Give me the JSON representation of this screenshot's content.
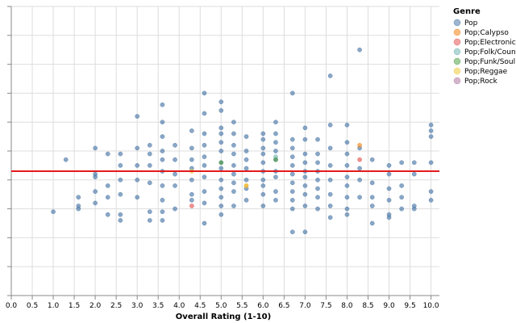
{
  "chart_data": {
    "type": "scatter",
    "title": "",
    "xlabel": "Overall Rating (1-10)",
    "ylabel": "",
    "xlim": [
      0,
      10.2
    ],
    "ylim": [
      0,
      1
    ],
    "x_ticks": [
      0,
      0.5,
      1,
      1.5,
      2,
      2.5,
      3,
      3.5,
      4,
      4.5,
      5,
      5.5,
      6,
      6.5,
      7,
      7.5,
      8,
      8.5,
      9,
      9.5,
      10
    ],
    "x_tick_labels": [
      "0.0",
      "0.5",
      "1.0",
      "1.5",
      "2.0",
      "2.5",
      "3.0",
      "3.5",
      "4.0",
      "4.5",
      "5.0",
      "5.5",
      "6.0",
      "6.5",
      "7.0",
      "7.5",
      "8.0",
      "8.5",
      "9.0",
      "9.5",
      "10.0"
    ],
    "y_ticks": [
      0,
      0.1,
      0.2,
      0.3,
      0.4,
      0.5,
      0.6,
      0.7,
      0.8,
      0.9,
      1.0
    ],
    "reference_line": {
      "y": 0.43,
      "color": "#e41a1c"
    },
    "legend": {
      "title": "Genre",
      "position": "right",
      "entries": [
        {
          "label": "Pop",
          "color": "#4c78a8"
        },
        {
          "label": "Pop;Calypso",
          "color": "#f58518"
        },
        {
          "label": "Pop;Electronic/",
          "color": "#e45756"
        },
        {
          "label": "Pop;Folk/Count",
          "color": "#72b7b2"
        },
        {
          "label": "Pop;Funk/Soul",
          "color": "#54a24b"
        },
        {
          "label": "Pop;Reggae",
          "color": "#eeca3b"
        },
        {
          "label": "Pop;Rock",
          "color": "#b279a2"
        }
      ]
    },
    "series": [
      {
        "name": "Pop",
        "color": "#4c78a8",
        "points": [
          [
            1.0,
            0.29
          ],
          [
            1.3,
            0.47
          ],
          [
            1.6,
            0.34
          ],
          [
            1.6,
            0.31
          ],
          [
            1.6,
            0.3
          ],
          [
            2.0,
            0.51
          ],
          [
            2.0,
            0.42
          ],
          [
            2.0,
            0.41
          ],
          [
            2.0,
            0.32
          ],
          [
            2.0,
            0.36
          ],
          [
            2.3,
            0.49
          ],
          [
            2.3,
            0.38
          ],
          [
            2.3,
            0.34
          ],
          [
            2.3,
            0.28
          ],
          [
            2.6,
            0.49
          ],
          [
            2.6,
            0.45
          ],
          [
            2.6,
            0.4
          ],
          [
            2.6,
            0.35
          ],
          [
            2.6,
            0.28
          ],
          [
            2.6,
            0.26
          ],
          [
            3.0,
            0.62
          ],
          [
            3.0,
            0.51
          ],
          [
            3.0,
            0.45
          ],
          [
            3.0,
            0.4
          ],
          [
            3.0,
            0.34
          ],
          [
            3.3,
            0.52
          ],
          [
            3.3,
            0.49
          ],
          [
            3.3,
            0.45
          ],
          [
            3.3,
            0.39
          ],
          [
            3.3,
            0.29
          ],
          [
            3.3,
            0.26
          ],
          [
            3.6,
            0.66
          ],
          [
            3.6,
            0.6
          ],
          [
            3.6,
            0.55
          ],
          [
            3.6,
            0.5
          ],
          [
            3.6,
            0.47
          ],
          [
            3.6,
            0.43
          ],
          [
            3.6,
            0.38
          ],
          [
            3.6,
            0.33
          ],
          [
            3.6,
            0.29
          ],
          [
            3.6,
            0.26
          ],
          [
            3.9,
            0.52
          ],
          [
            3.9,
            0.47
          ],
          [
            3.9,
            0.42
          ],
          [
            3.9,
            0.38
          ],
          [
            3.9,
            0.3
          ],
          [
            4.3,
            0.57
          ],
          [
            4.3,
            0.51
          ],
          [
            4.3,
            0.47
          ],
          [
            4.3,
            0.44
          ],
          [
            4.3,
            0.4
          ],
          [
            4.3,
            0.35
          ],
          [
            4.3,
            0.33
          ],
          [
            4.6,
            0.7
          ],
          [
            4.6,
            0.63
          ],
          [
            4.6,
            0.56
          ],
          [
            4.6,
            0.52
          ],
          [
            4.6,
            0.48
          ],
          [
            4.6,
            0.45
          ],
          [
            4.6,
            0.41
          ],
          [
            4.6,
            0.36
          ],
          [
            4.6,
            0.32
          ],
          [
            4.6,
            0.25
          ],
          [
            5.0,
            0.67
          ],
          [
            5.0,
            0.64
          ],
          [
            5.0,
            0.58
          ],
          [
            5.0,
            0.56
          ],
          [
            5.0,
            0.53
          ],
          [
            5.0,
            0.5
          ],
          [
            5.0,
            0.46
          ],
          [
            5.0,
            0.44
          ],
          [
            5.0,
            0.4
          ],
          [
            5.0,
            0.37
          ],
          [
            5.0,
            0.34
          ],
          [
            5.0,
            0.31
          ],
          [
            5.0,
            0.28
          ],
          [
            5.3,
            0.6
          ],
          [
            5.3,
            0.56
          ],
          [
            5.3,
            0.52
          ],
          [
            5.3,
            0.49
          ],
          [
            5.3,
            0.45
          ],
          [
            5.3,
            0.42
          ],
          [
            5.3,
            0.39
          ],
          [
            5.3,
            0.36
          ],
          [
            5.3,
            0.31
          ],
          [
            5.6,
            0.55
          ],
          [
            5.6,
            0.5
          ],
          [
            5.6,
            0.47
          ],
          [
            5.6,
            0.44
          ],
          [
            5.6,
            0.4
          ],
          [
            5.6,
            0.37
          ],
          [
            5.6,
            0.33
          ],
          [
            6.0,
            0.56
          ],
          [
            6.0,
            0.54
          ],
          [
            6.0,
            0.51
          ],
          [
            6.0,
            0.49
          ],
          [
            6.0,
            0.46
          ],
          [
            6.0,
            0.43
          ],
          [
            6.0,
            0.4
          ],
          [
            6.0,
            0.38
          ],
          [
            6.0,
            0.35
          ],
          [
            6.0,
            0.31
          ],
          [
            6.3,
            0.6
          ],
          [
            6.3,
            0.56
          ],
          [
            6.3,
            0.53
          ],
          [
            6.3,
            0.5
          ],
          [
            6.3,
            0.47
          ],
          [
            6.3,
            0.43
          ],
          [
            6.3,
            0.41
          ],
          [
            6.3,
            0.36
          ],
          [
            6.3,
            0.33
          ],
          [
            6.7,
            0.7
          ],
          [
            6.7,
            0.54
          ],
          [
            6.7,
            0.51
          ],
          [
            6.7,
            0.48
          ],
          [
            6.7,
            0.45
          ],
          [
            6.7,
            0.42
          ],
          [
            6.7,
            0.39
          ],
          [
            6.7,
            0.36
          ],
          [
            6.7,
            0.33
          ],
          [
            6.7,
            0.3
          ],
          [
            6.7,
            0.22
          ],
          [
            7.0,
            0.58
          ],
          [
            7.0,
            0.54
          ],
          [
            7.0,
            0.49
          ],
          [
            7.0,
            0.46
          ],
          [
            7.0,
            0.43
          ],
          [
            7.0,
            0.41
          ],
          [
            7.0,
            0.38
          ],
          [
            7.0,
            0.35
          ],
          [
            7.0,
            0.31
          ],
          [
            7.0,
            0.22
          ],
          [
            7.3,
            0.54
          ],
          [
            7.3,
            0.49
          ],
          [
            7.3,
            0.46
          ],
          [
            7.3,
            0.43
          ],
          [
            7.3,
            0.4
          ],
          [
            7.3,
            0.37
          ],
          [
            7.3,
            0.34
          ],
          [
            7.3,
            0.3
          ],
          [
            7.6,
            0.76
          ],
          [
            7.6,
            0.59
          ],
          [
            7.6,
            0.51
          ],
          [
            7.6,
            0.45
          ],
          [
            7.6,
            0.4
          ],
          [
            7.6,
            0.35
          ],
          [
            7.6,
            0.31
          ],
          [
            7.6,
            0.27
          ],
          [
            8.0,
            0.59
          ],
          [
            8.0,
            0.53
          ],
          [
            8.0,
            0.49
          ],
          [
            8.0,
            0.45
          ],
          [
            8.0,
            0.41
          ],
          [
            8.0,
            0.38
          ],
          [
            8.0,
            0.34
          ],
          [
            8.0,
            0.3
          ],
          [
            8.0,
            0.28
          ],
          [
            8.3,
            0.85
          ],
          [
            8.3,
            0.51
          ],
          [
            8.3,
            0.44
          ],
          [
            8.3,
            0.4
          ],
          [
            8.3,
            0.34
          ],
          [
            8.6,
            0.47
          ],
          [
            8.6,
            0.39
          ],
          [
            8.6,
            0.34
          ],
          [
            8.6,
            0.31
          ],
          [
            8.6,
            0.25
          ],
          [
            9.0,
            0.45
          ],
          [
            9.0,
            0.42
          ],
          [
            9.0,
            0.37
          ],
          [
            9.0,
            0.33
          ],
          [
            9.0,
            0.28
          ],
          [
            9.0,
            0.27
          ],
          [
            9.3,
            0.46
          ],
          [
            9.3,
            0.38
          ],
          [
            9.3,
            0.34
          ],
          [
            9.3,
            0.3
          ],
          [
            9.6,
            0.46
          ],
          [
            9.6,
            0.42
          ],
          [
            9.6,
            0.31
          ],
          [
            9.6,
            0.3
          ],
          [
            10.0,
            0.59
          ],
          [
            10.0,
            0.57
          ],
          [
            10.0,
            0.55
          ],
          [
            10.0,
            0.46
          ],
          [
            10.0,
            0.36
          ],
          [
            10.0,
            0.33
          ]
        ]
      },
      {
        "name": "Pop;Calypso",
        "color": "#f58518",
        "points": [
          [
            8.3,
            0.52
          ],
          [
            5.6,
            0.38
          ]
        ]
      },
      {
        "name": "Pop;Electronic/",
        "color": "#e45756",
        "points": [
          [
            8.3,
            0.47
          ],
          [
            4.3,
            0.31
          ]
        ]
      },
      {
        "name": "Pop;Folk/Count",
        "color": "#72b7b2",
        "points": [
          [
            6.3,
            0.48
          ]
        ]
      },
      {
        "name": "Pop;Funk/Soul",
        "color": "#54a24b",
        "points": [
          [
            5.0,
            0.46
          ],
          [
            6.3,
            0.47
          ]
        ]
      },
      {
        "name": "Pop;Reggae",
        "color": "#eeca3b",
        "points": [
          [
            5.6,
            0.38
          ],
          [
            4.3,
            0.43
          ]
        ]
      },
      {
        "name": "Pop;Rock",
        "color": "#b279a2",
        "points": []
      }
    ]
  }
}
